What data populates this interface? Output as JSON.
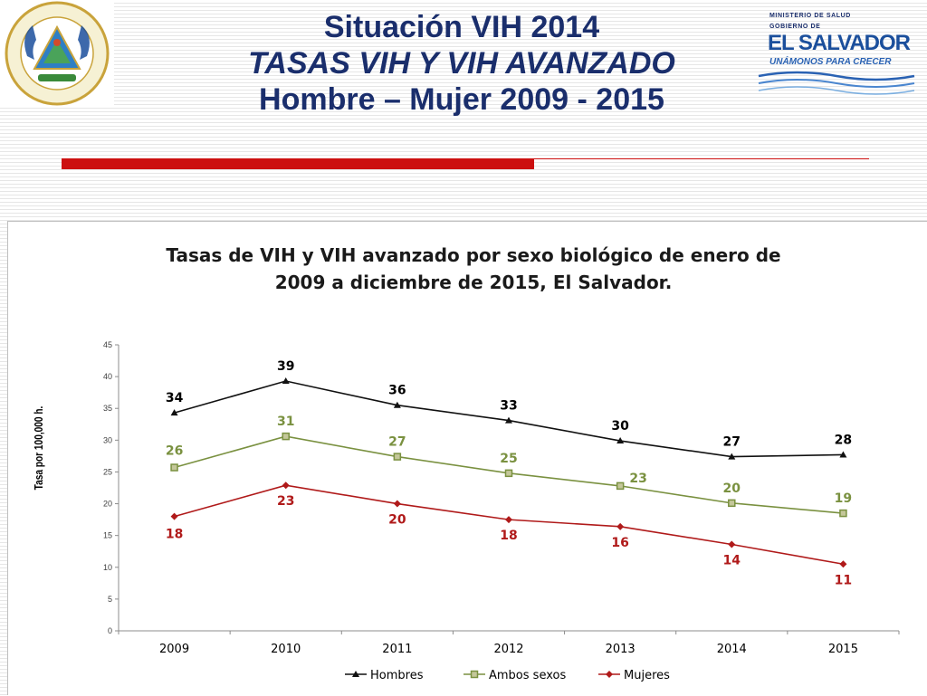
{
  "header": {
    "title_lines": [
      "Situación VIH 2014",
      "TASAS VIH Y VIH AVANZADO",
      "Hombre – Mujer 2009 - 2015"
    ],
    "logo": {
      "ministry": "MINISTERIO DE SALUD",
      "government": "GOBIERNO DE",
      "country": "EL SALVADOR",
      "slogan": "UNÁMONOS PARA CRECER"
    },
    "seal_text": "REPÚBLICA DE EL SALVADOR EN LA AMÉRICA CENTRAL"
  },
  "colors": {
    "title": "#1a2e6c",
    "accent_bar": "#cc1010",
    "hombres": "#111111",
    "ambos": "#7a9140",
    "mujeres": "#b01a1a"
  },
  "chart_data": {
    "type": "line",
    "title": "Tasas de VIH y VIH avanzado por sexo biológico de enero de 2009 a diciembre de 2015, El Salvador.",
    "title_lines": [
      "Tasas de VIH y VIH avanzado por sexo biológico de enero de",
      "2009 a diciembre de 2015, El Salvador."
    ],
    "xlabel": "",
    "ylabel": "Tasa por 100,000 h.",
    "categories": [
      "2009",
      "2010",
      "2011",
      "2012",
      "2013",
      "2014",
      "2015"
    ],
    "ylim": [
      0,
      45
    ],
    "yticks": [
      "0",
      "5",
      "10",
      "15",
      "20",
      "25",
      "30",
      "35",
      "40",
      "45"
    ],
    "grid": false,
    "legend_position": "bottom",
    "series": [
      {
        "name": "Hombres",
        "values": [
          34.3,
          39.3,
          35.5,
          33.1,
          29.9,
          27.4,
          27.7
        ],
        "labels": [
          "34",
          "39",
          "36",
          "33",
          "30",
          "27",
          "28"
        ],
        "marker": "triangle",
        "color": "#111111"
      },
      {
        "name": "Ambos sexos",
        "values": [
          25.7,
          30.6,
          27.4,
          24.8,
          22.8,
          20.1,
          18.5
        ],
        "labels": [
          "26",
          "31",
          "27",
          "25",
          "23",
          "20",
          "19"
        ],
        "marker": "square",
        "color": "#7a9140"
      },
      {
        "name": "Mujeres",
        "values": [
          18.0,
          22.9,
          20.0,
          17.5,
          16.4,
          13.6,
          10.5
        ],
        "labels": [
          "18",
          "23",
          "20",
          "18",
          "16",
          "14",
          "11"
        ],
        "marker": "diamond",
        "color": "#b01a1a"
      }
    ]
  }
}
